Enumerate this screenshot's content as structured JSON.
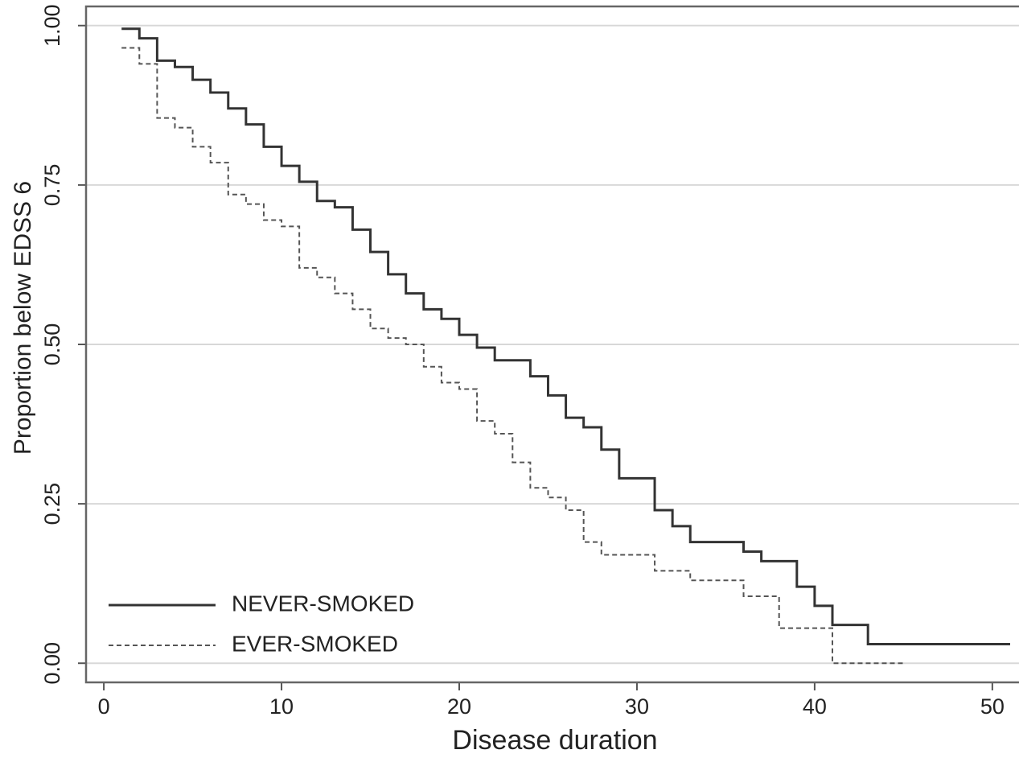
{
  "chart_data": {
    "type": "step",
    "x_label": "Disease duration",
    "y_label": "Proportion below EDSS 6",
    "xlim": [
      -1,
      51.5
    ],
    "ylim": [
      -0.03,
      1.03
    ],
    "xticks": [
      0,
      10,
      20,
      30,
      40,
      50
    ],
    "yticks": [
      {
        "value": 0,
        "label": "0.00"
      },
      {
        "value": 0.25,
        "label": "0.25"
      },
      {
        "value": 0.5,
        "label": "0.50"
      },
      {
        "value": 0.75,
        "label": "0.75"
      },
      {
        "value": 1,
        "label": "1.00"
      }
    ],
    "grid": true,
    "legend": "lower left",
    "series": [
      {
        "name": "NEVER-SMOKED",
        "color": "#333333",
        "dash": false,
        "x": [
          1,
          2,
          3,
          4,
          5,
          6,
          7,
          8,
          9,
          10,
          11,
          12,
          13,
          14,
          15,
          16,
          17,
          18,
          19,
          20,
          21,
          22,
          24,
          25,
          26,
          27,
          28,
          29,
          31,
          32,
          33,
          36,
          37,
          39,
          40,
          41,
          43,
          51
        ],
        "values": [
          0.995,
          0.98,
          0.945,
          0.935,
          0.915,
          0.895,
          0.87,
          0.845,
          0.81,
          0.78,
          0.755,
          0.725,
          0.715,
          0.68,
          0.645,
          0.61,
          0.58,
          0.555,
          0.54,
          0.515,
          0.495,
          0.475,
          0.45,
          0.42,
          0.385,
          0.37,
          0.335,
          0.29,
          0.24,
          0.215,
          0.19,
          0.175,
          0.16,
          0.12,
          0.09,
          0.06,
          0.03,
          0.03
        ]
      },
      {
        "name": "EVER-SMOKED",
        "color": "#555555",
        "dash": true,
        "x": [
          1,
          2,
          3,
          4,
          5,
          6,
          7,
          8,
          9,
          10,
          11,
          12,
          13,
          14,
          15,
          16,
          17,
          18,
          19,
          20,
          21,
          22,
          23,
          24,
          25,
          26,
          27,
          28,
          31,
          33,
          36,
          38,
          41,
          45
        ],
        "values": [
          0.965,
          0.94,
          0.855,
          0.84,
          0.81,
          0.785,
          0.735,
          0.72,
          0.695,
          0.685,
          0.62,
          0.605,
          0.58,
          0.555,
          0.525,
          0.51,
          0.5,
          0.465,
          0.44,
          0.43,
          0.38,
          0.36,
          0.315,
          0.275,
          0.26,
          0.24,
          0.19,
          0.17,
          0.145,
          0.13,
          0.105,
          0.055,
          0,
          0
        ]
      }
    ]
  }
}
